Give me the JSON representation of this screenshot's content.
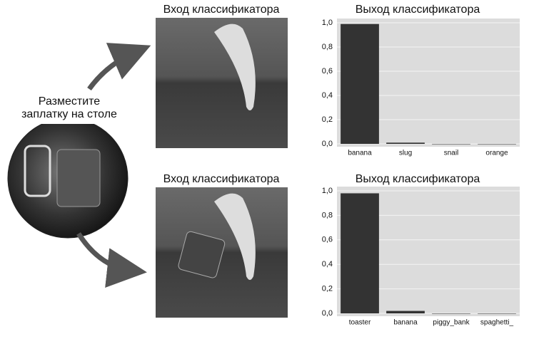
{
  "patch_caption": [
    "Разместите",
    "заплатку на столе"
  ],
  "inputs": [
    {
      "label": "Вход классификатора"
    },
    {
      "label": "Вход классификатора"
    }
  ],
  "chart_data": [
    {
      "type": "bar",
      "title": "Выход классификатора",
      "categories": [
        "banana",
        "slug",
        "snail",
        "orange"
      ],
      "values": [
        0.99,
        0.01,
        0.0,
        0.0
      ],
      "color": "#333333",
      "ylim": [
        0,
        1.0
      ],
      "yticks": [
        {
          "value": 0,
          "label": "0,0"
        },
        {
          "value": 0.2,
          "label": "0,2"
        },
        {
          "value": 0.4,
          "label": "0,4"
        },
        {
          "value": 0.6,
          "label": "0,6"
        },
        {
          "value": 0.8,
          "label": "0,8"
        },
        {
          "value": 1.0,
          "label": "1,0"
        }
      ],
      "grid": true
    },
    {
      "type": "bar",
      "title": "Выход классификатора",
      "categories": [
        "toaster",
        "banana",
        "piggy_bank",
        "spaghetti_"
      ],
      "values": [
        0.98,
        0.02,
        0.0,
        0.0
      ],
      "color": "#333333",
      "ylim": [
        0,
        1.0
      ],
      "yticks": [
        {
          "value": 0,
          "label": "0,0"
        },
        {
          "value": 0.2,
          "label": "0,2"
        },
        {
          "value": 0.4,
          "label": "0,4"
        },
        {
          "value": 0.6,
          "label": "0,6"
        },
        {
          "value": 0.8,
          "label": "0,8"
        },
        {
          "value": 1.0,
          "label": "1,0"
        }
      ],
      "grid": true
    }
  ]
}
